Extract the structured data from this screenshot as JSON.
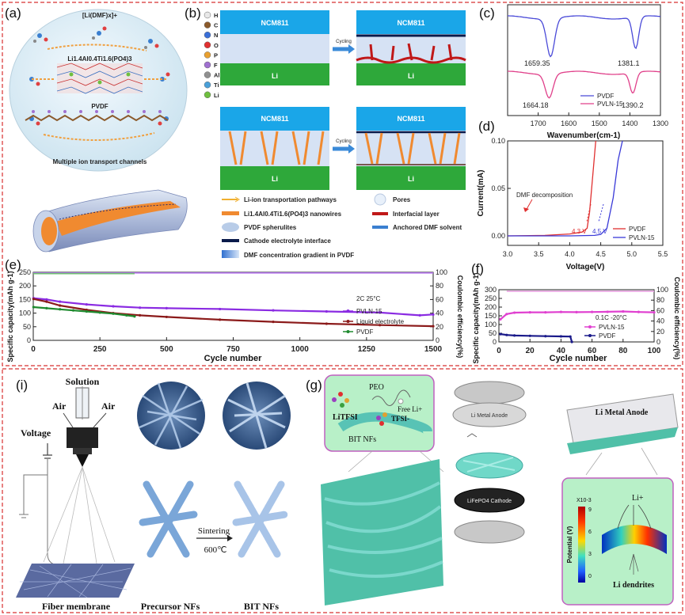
{
  "panels": {
    "a": {
      "label": "(a)",
      "complex_label": "[Li(DMF)x]+",
      "llatp_label": "Li1.4Al0.4Ti1.6(PO4)3",
      "pvdf_label": "PVDF",
      "channels_label": "Multiple ion transport channels"
    },
    "b": {
      "label": "(b)",
      "elements": [
        "H",
        "C",
        "N",
        "O",
        "P",
        "F",
        "Al",
        "Ti",
        "Li"
      ],
      "element_colors": [
        "#e8e8e8",
        "#8b5a2b",
        "#3a6fd8",
        "#e03030",
        "#e8a030",
        "#a070d0",
        "#909090",
        "#4aa0d8",
        "#6fbf3f"
      ],
      "cathode": "NCM811",
      "anode": "Li",
      "cycling": "Cycling",
      "legend_left": [
        "Li-ion transportation pathways",
        "Li1.4Al0.4Ti1.6(PO4)3 nanowires",
        "PVDF spherulites",
        "Cathode electrolyte interface",
        "DMF concentration gradient in PVDF"
      ],
      "legend_right": [
        "Pores",
        "Interfacial layer",
        "Anchored DMF solvent"
      ]
    },
    "g": {
      "label": "(g)",
      "peo": "PEO",
      "free_li": "Free Li+",
      "litfsi": "LiTFSI",
      "tfsi": "TFSI-",
      "bit_nfs": "BIT NFs",
      "anode_disc": "Li Metal Anode",
      "cathode_disc": "LiFePO4 Cathode",
      "anode_sheet": "Li Metal Anode",
      "colorbar_exp": "X10-3",
      "colorbar_label": "Potential (V)",
      "colorbar_ticks": [
        "9",
        "6",
        "3",
        "0"
      ],
      "li_ion": "Li+",
      "dendrites": "Li dendrites"
    },
    "i": {
      "label": "(i)",
      "solution": "Solution",
      "air_left": "Air",
      "air_right": "Air",
      "voltage": "Voltage",
      "sintering": "Sintering",
      "temperature": "600℃",
      "fiber_membrane": "Fiber membrane",
      "precursor": "Precursor NFs",
      "bit": "BIT NFs"
    }
  },
  "chart_data": [
    {
      "id": "c",
      "label": "(c)",
      "type": "line",
      "xlabel": "Wavenumber(cm-1)",
      "ylabel": "",
      "xlim": [
        1800,
        1300
      ],
      "x_ticks": [
        1700,
        1600,
        1500,
        1400,
        1300
      ],
      "series": [
        {
          "name": "PVDF",
          "color": "#4a4ad8",
          "dips": [
            1659.35,
            1381.1
          ]
        },
        {
          "name": "PVLN-15",
          "color": "#e0408a",
          "dips": [
            1664.18,
            1390.2
          ]
        }
      ],
      "annotations": [
        "1659.35",
        "1381.1",
        "1664.18",
        "1390.2"
      ],
      "legend": "bottom-right"
    },
    {
      "id": "d",
      "label": "(d)",
      "type": "line",
      "xlabel": "Voltage(V)",
      "ylabel": "Current(mA)",
      "xlim": [
        3.0,
        5.5
      ],
      "ylim": [
        -0.01,
        0.1
      ],
      "x_ticks": [
        "3.0",
        "3.5",
        "4.0",
        "4.5",
        "5.0",
        "5.5"
      ],
      "y_ticks": [
        "0.00",
        "0.05",
        "0.10"
      ],
      "series": [
        {
          "name": "PVDF",
          "color": "#e03030",
          "x": [
            3.0,
            3.6,
            4.0,
            4.2,
            4.28,
            4.32,
            4.38,
            4.42
          ],
          "y": [
            0.0,
            0.0005,
            0.002,
            0.004,
            0.008,
            0.025,
            0.07,
            0.1
          ]
        },
        {
          "name": "PVLN-15",
          "color": "#3a3ad8",
          "x": [
            3.0,
            4.0,
            4.4,
            4.5,
            4.6,
            4.7,
            4.78,
            4.85
          ],
          "y": [
            0.0,
            0.0,
            0.0005,
            0.0015,
            0.008,
            0.04,
            0.08,
            0.1
          ]
        }
      ],
      "annotations": [
        "DMF decomposition",
        "4.3 V",
        "4.5 V"
      ],
      "legend": "bottom-right"
    },
    {
      "id": "e",
      "label": "(e)",
      "type": "scatter",
      "xlabel": "Cycle number",
      "ylabel": "Specific capacity(mAh g-1)",
      "ylabel_right": "Coulombic efficiency(%)",
      "xlim": [
        0,
        1500
      ],
      "ylim": [
        0,
        250
      ],
      "ylim_right": [
        0,
        100
      ],
      "x_ticks": [
        0,
        250,
        500,
        750,
        1000,
        1250,
        1500
      ],
      "y_ticks": [
        0,
        50,
        100,
        150,
        200,
        250
      ],
      "y_ticks_right": [
        0,
        20,
        40,
        60,
        80,
        100
      ],
      "condition": "2C 25°C",
      "series": [
        {
          "name": "PVLN-15",
          "color": "#8a2be2",
          "x": [
            1,
            50,
            100,
            200,
            300,
            400,
            500,
            700,
            900,
            1100,
            1300,
            1450,
            1500
          ],
          "y": [
            155,
            150,
            142,
            132,
            125,
            120,
            118,
            115,
            110,
            106,
            102,
            92,
            95
          ]
        },
        {
          "name": "Liquid electrolyte",
          "color": "#8b1a1a",
          "x": [
            1,
            50,
            100,
            200,
            300,
            400,
            500,
            700,
            900,
            1100,
            1300,
            1500
          ],
          "y": [
            152,
            142,
            128,
            112,
            100,
            92,
            86,
            76,
            68,
            61,
            56,
            52
          ]
        },
        {
          "name": "PVDF",
          "color": "#1f8a2f",
          "x": [
            1,
            50,
            100,
            150,
            200,
            250,
            300,
            350,
            380
          ],
          "y": [
            122,
            118,
            114,
            110,
            106,
            102,
            98,
            92,
            88
          ]
        }
      ],
      "legend": "top-right"
    },
    {
      "id": "f",
      "label": "(f)",
      "type": "scatter",
      "xlabel": "Cycle number",
      "ylabel": "Specific capacity(mAh g-1)",
      "ylabel_right": "Coulombic efficiency(%)",
      "xlim": [
        0,
        100
      ],
      "ylim": [
        0,
        300
      ],
      "ylim_right": [
        0,
        100
      ],
      "x_ticks": [
        0,
        20,
        40,
        60,
        80,
        100
      ],
      "y_ticks": [
        0,
        50,
        100,
        150,
        200,
        250,
        300
      ],
      "y_ticks_right": [
        0,
        20,
        40,
        60,
        80,
        100
      ],
      "condition": "0.1C -20°C",
      "series": [
        {
          "name": "PVLN-15",
          "color": "#e040d0",
          "x": [
            1,
            5,
            10,
            20,
            30,
            40,
            50,
            60,
            70,
            80,
            90,
            100
          ],
          "y": [
            130,
            160,
            168,
            170,
            170,
            172,
            171,
            172,
            173,
            175,
            172,
            170
          ]
        },
        {
          "name": "PVDF",
          "color": "#1a1a8a",
          "x": [
            1,
            5,
            10,
            20,
            30,
            40,
            46,
            47
          ],
          "y": [
            45,
            40,
            37,
            35,
            33,
            32,
            31,
            0
          ]
        }
      ],
      "legend": "bottom-right"
    }
  ]
}
